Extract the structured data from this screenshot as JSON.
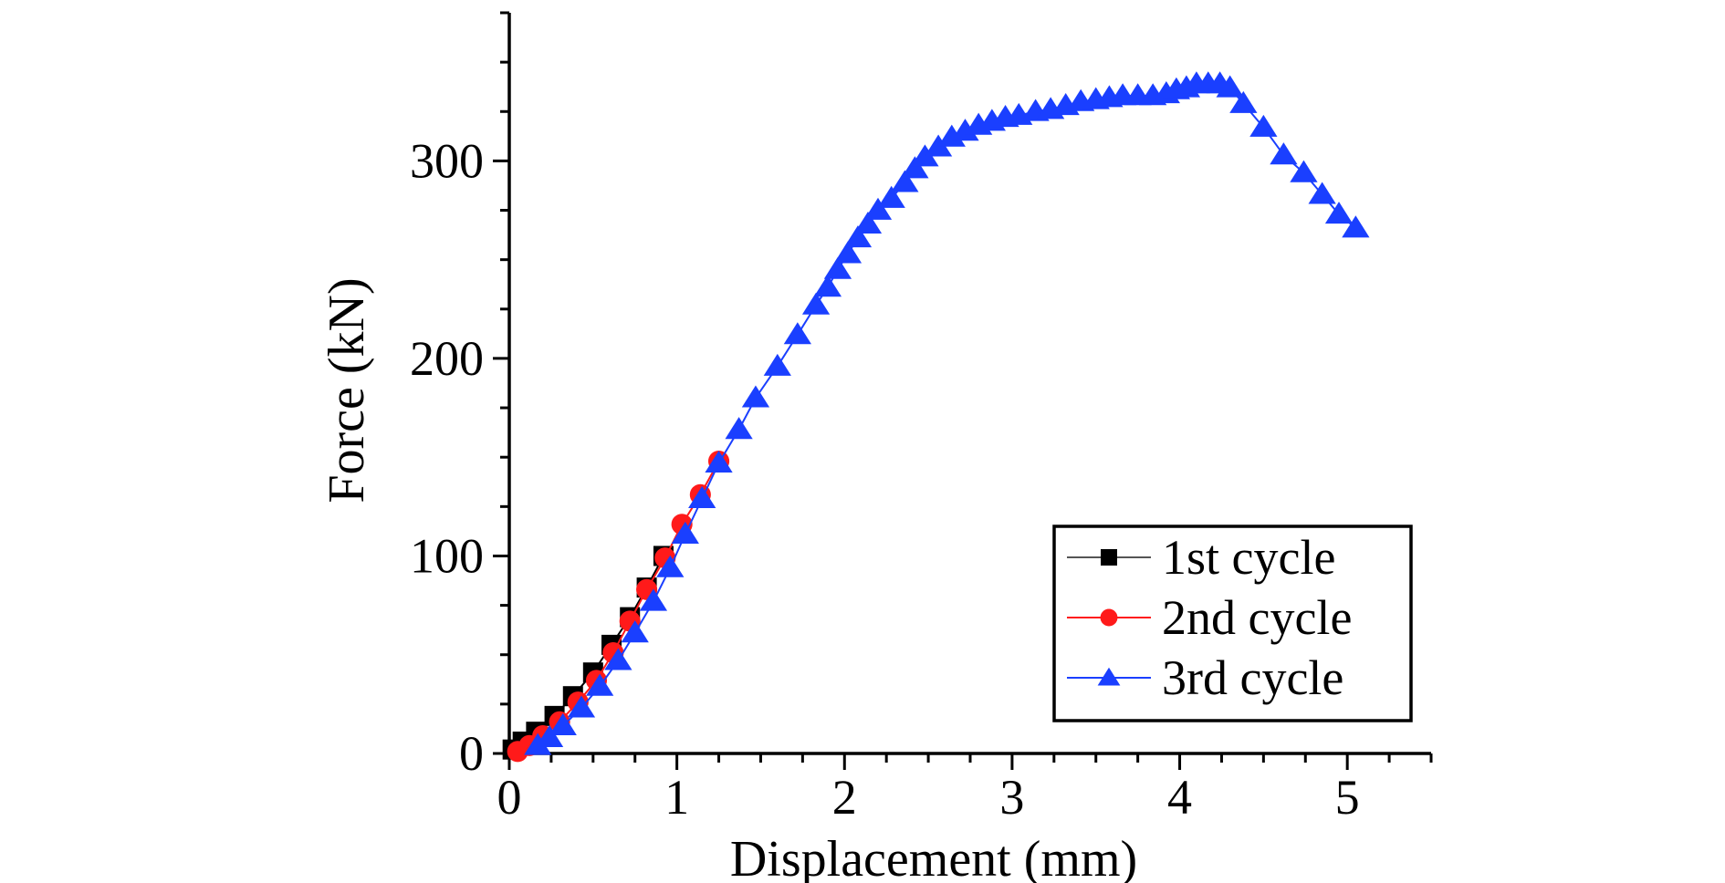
{
  "chart_data": {
    "type": "line",
    "title": "",
    "xlabel": "Displacement (mm)",
    "ylabel": "Force (kN)",
    "xlim": [
      0,
      5.5
    ],
    "ylim": [
      0,
      375
    ],
    "x_ticks": [
      0,
      1,
      2,
      3,
      4,
      5
    ],
    "x_minor_step": 0.25,
    "y_ticks": [
      0,
      100,
      200,
      300
    ],
    "y_minor_step": 25,
    "grid": false,
    "legend": {
      "position": "bottom-right",
      "entries": [
        "1st cycle",
        "2nd cycle",
        "3rd cycle"
      ]
    },
    "series": [
      {
        "name": "1st cycle",
        "color": "#000000",
        "marker": "square",
        "points": [
          [
            0.02,
            2
          ],
          [
            0.08,
            6
          ],
          [
            0.16,
            11
          ],
          [
            0.27,
            19
          ],
          [
            0.38,
            29
          ],
          [
            0.5,
            41
          ],
          [
            0.61,
            55
          ],
          [
            0.72,
            69
          ],
          [
            0.82,
            84
          ],
          [
            0.92,
            100
          ]
        ]
      },
      {
        "name": "2nd cycle",
        "color": "#ff1a1a",
        "marker": "circle",
        "points": [
          [
            0.05,
            1
          ],
          [
            0.12,
            4
          ],
          [
            0.2,
            9
          ],
          [
            0.3,
            16
          ],
          [
            0.41,
            26
          ],
          [
            0.52,
            37
          ],
          [
            0.62,
            51
          ],
          [
            0.72,
            67
          ],
          [
            0.82,
            83
          ],
          [
            0.93,
            99
          ],
          [
            1.03,
            116
          ],
          [
            1.14,
            131
          ],
          [
            1.25,
            148
          ]
        ]
      },
      {
        "name": "3rd cycle",
        "color": "#1a3fff",
        "marker": "triangle",
        "points": [
          [
            0.17,
            4
          ],
          [
            0.24,
            8
          ],
          [
            0.32,
            14
          ],
          [
            0.43,
            23
          ],
          [
            0.54,
            34
          ],
          [
            0.65,
            47
          ],
          [
            0.75,
            61
          ],
          [
            0.86,
            77
          ],
          [
            0.96,
            94
          ],
          [
            1.05,
            111
          ],
          [
            1.15,
            129
          ],
          [
            1.25,
            147
          ],
          [
            1.37,
            164
          ],
          [
            1.47,
            180
          ],
          [
            1.6,
            196
          ],
          [
            1.72,
            212
          ],
          [
            1.83,
            227
          ],
          [
            1.9,
            236
          ],
          [
            1.96,
            245
          ],
          [
            2.02,
            253
          ],
          [
            2.08,
            261
          ],
          [
            2.14,
            268
          ],
          [
            2.2,
            275
          ],
          [
            2.28,
            281
          ],
          [
            2.36,
            289
          ],
          [
            2.42,
            296
          ],
          [
            2.48,
            302
          ],
          [
            2.56,
            307
          ],
          [
            2.64,
            312
          ],
          [
            2.72,
            315
          ],
          [
            2.8,
            318
          ],
          [
            2.88,
            320
          ],
          [
            2.96,
            322
          ],
          [
            3.04,
            323
          ],
          [
            3.14,
            325
          ],
          [
            3.23,
            326
          ],
          [
            3.32,
            328
          ],
          [
            3.41,
            330
          ],
          [
            3.5,
            331
          ],
          [
            3.58,
            332
          ],
          [
            3.66,
            333
          ],
          [
            3.75,
            333
          ],
          [
            3.84,
            333
          ],
          [
            3.92,
            334
          ],
          [
            3.98,
            336
          ],
          [
            4.04,
            337
          ],
          [
            4.1,
            339
          ],
          [
            4.17,
            339
          ],
          [
            4.24,
            339
          ],
          [
            4.3,
            337
          ],
          [
            4.38,
            329
          ],
          [
            4.5,
            317
          ],
          [
            4.62,
            303
          ],
          [
            4.74,
            294
          ],
          [
            4.85,
            283
          ],
          [
            4.95,
            273
          ],
          [
            5.05,
            266
          ]
        ]
      }
    ]
  }
}
